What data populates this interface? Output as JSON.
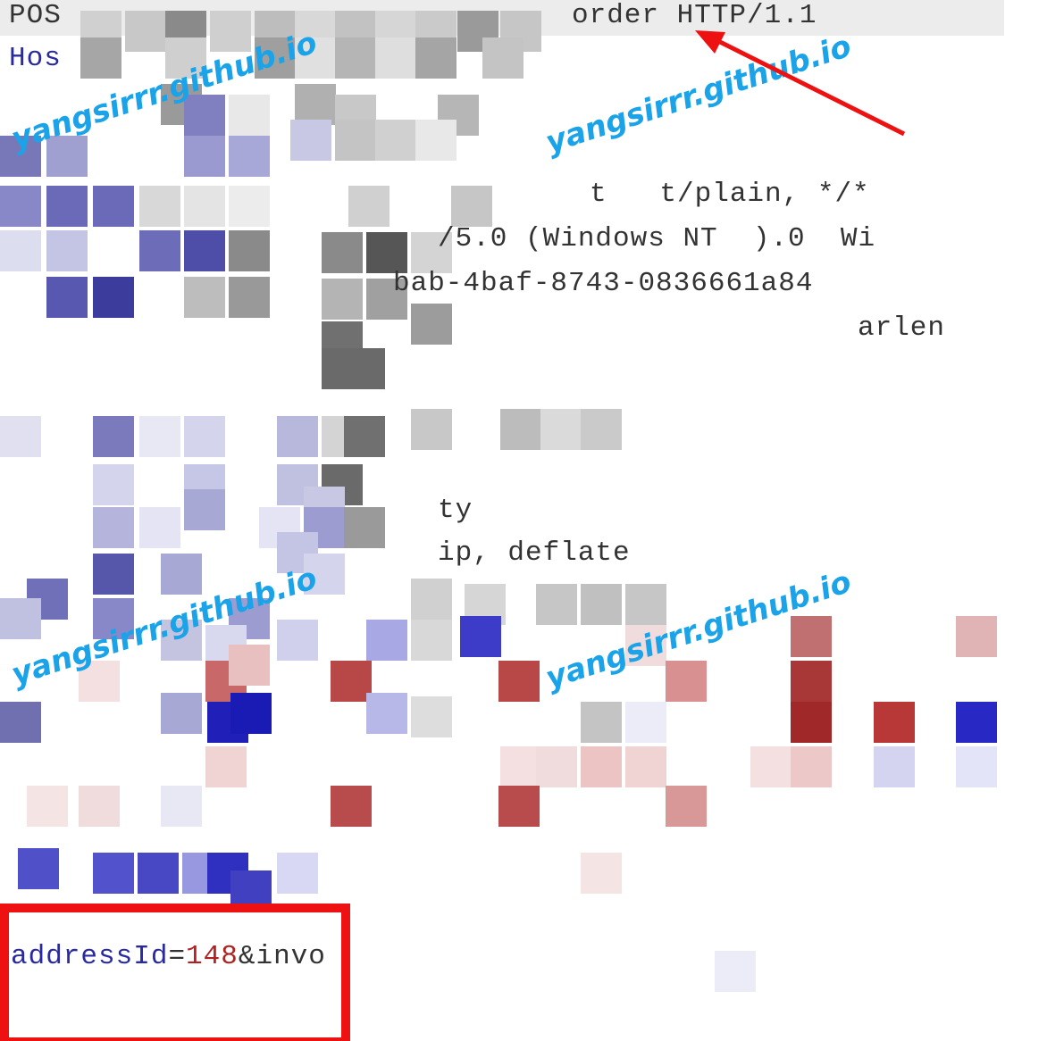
{
  "request_line": {
    "method_fragment": "POS",
    "path_fragment": "order HTTP/1.1"
  },
  "headers": {
    "host_fragment": "Hos",
    "accept_fragment": "t   t/plain, */*",
    "user_agent_fragment": "/5.0 (Windows NT  ).0  Wi",
    "id_fragment": "bab-4baf-8743-0836661a84",
    "misc_fragment": "arlen",
    "connection_fragment": "ty",
    "encoding_fragment": "ip, deflate"
  },
  "body": {
    "param_key": "addressId",
    "param_eq": "=",
    "param_value": "148",
    "param_rest": "&invo"
  },
  "watermarks": [
    "yangsirrr.github.io",
    "yangsirrr.github.io",
    "yangsirrr.github.io",
    "yangsirrr.github.io"
  ],
  "colors": {
    "highlight": "#ee1111",
    "arrow": "#ee1111",
    "watermark": "#1aa3e8",
    "param_key": "#2a2aa0",
    "param_value": "#b02222"
  }
}
